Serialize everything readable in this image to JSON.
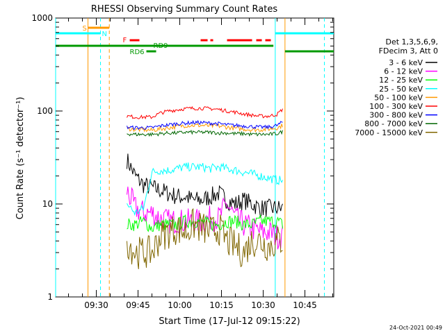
{
  "chart_data": {
    "type": "line",
    "title": "RHESSI Observing Summary Count Rates",
    "xlabel": "Start Time (17-Jul-12 09:15:22)",
    "ylabel": "Count Rate (s⁻¹ detector⁻¹)",
    "yscale": "log",
    "ylim": [
      1,
      1000
    ],
    "xlim": [
      "09:15:22",
      "10:55:22"
    ],
    "x_ticks": [
      "09:30",
      "09:45",
      "10:00",
      "10:15",
      "10:30",
      "10:45"
    ],
    "y_ticks": [
      "1",
      "10",
      "100",
      "1000"
    ],
    "grid": false,
    "legend_position": "right",
    "legend_header": [
      "Det 1,3,5,6,9,",
      "FDecim 3, Att 0"
    ],
    "timestamp": "24-Oct-2021 00:49",
    "x": [
      "09:41",
      "09:44",
      "09:47",
      "09:50",
      "09:53",
      "09:56",
      "09:59",
      "10:02",
      "10:05",
      "10:08",
      "10:11",
      "10:14",
      "10:17",
      "10:20",
      "10:23",
      "10:26",
      "10:29",
      "10:32",
      "10:35",
      "10:37"
    ],
    "series": [
      {
        "name": "3 - 6 keV",
        "color": "#000000",
        "values": [
          30,
          20,
          16,
          15,
          14,
          13,
          12,
          12,
          11,
          11,
          12,
          13,
          11,
          10,
          11,
          10,
          9,
          9,
          9,
          9
        ]
      },
      {
        "name": "6 - 12 keV",
        "color": "#ff00ff",
        "values": [
          14,
          9,
          8,
          8,
          7,
          6.5,
          6.5,
          6.5,
          6.5,
          6.5,
          7,
          7,
          10,
          7,
          6,
          5.5,
          5,
          5,
          4.5,
          4.5
        ]
      },
      {
        "name": "12 - 25 keV",
        "color": "#00ff00",
        "values": [
          6,
          6,
          6.5,
          5.5,
          6,
          6,
          6,
          6.5,
          6.5,
          6.5,
          6,
          6,
          6.5,
          6.5,
          6,
          6,
          6.5,
          6.5,
          6.5,
          6
        ]
      },
      {
        "name": "25 - 50 keV",
        "color": "#00ffff",
        "values": [
          10,
          8,
          9,
          22,
          23,
          23,
          24,
          25,
          25,
          25,
          24,
          25,
          24,
          23,
          22,
          21,
          20,
          19,
          18,
          18
        ]
      },
      {
        "name": "50 - 100 keV",
        "color": "#ff9900",
        "values": [
          65,
          63,
          63,
          62,
          64,
          66,
          68,
          70,
          70,
          70,
          69,
          69,
          67,
          65,
          64,
          63,
          63,
          64,
          66,
          70
        ]
      },
      {
        "name": "100 - 300 keV",
        "color": "#ff0000",
        "values": [
          88,
          86,
          86,
          86,
          95,
          100,
          103,
          106,
          107,
          107,
          106,
          104,
          100,
          97,
          93,
          90,
          88,
          88,
          92,
          105
        ]
      },
      {
        "name": "300 - 800 keV",
        "color": "#0000ff",
        "values": [
          67,
          66,
          66,
          66,
          69,
          71,
          73,
          74,
          75,
          75,
          74,
          73,
          71,
          70,
          69,
          68,
          67,
          67,
          70,
          76
        ]
      },
      {
        "name": "800 - 7000 keV",
        "color": "#006600",
        "values": [
          57,
          56,
          56,
          56,
          57,
          58,
          58,
          59,
          59,
          59,
          59,
          58,
          58,
          57,
          57,
          56,
          56,
          56,
          57,
          60
        ]
      },
      {
        "name": "7000 - 15000 keV",
        "color": "#806600",
        "values": [
          4,
          3,
          3,
          3,
          4.5,
          5,
          5.5,
          5,
          6,
          5.5,
          5,
          5.5,
          4,
          3.5,
          3,
          4,
          4,
          3.5,
          4,
          4
        ]
      }
    ],
    "flags": [
      {
        "label": "S",
        "color": "#ff9900"
      },
      {
        "label": "N",
        "color": "#00ffff"
      },
      {
        "label": "F",
        "color": "#ff0000"
      },
      {
        "label": "RD9",
        "color": "#009900"
      },
      {
        "label": "RD6",
        "color": "#009900"
      }
    ]
  }
}
